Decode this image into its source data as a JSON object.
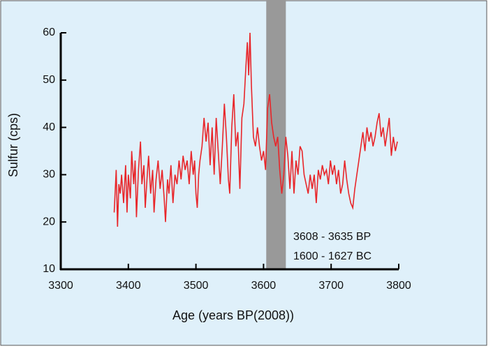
{
  "chart_data": {
    "type": "line",
    "xlabel": "Age (years BP(2008))",
    "ylabel": "Sulfur (cps)",
    "annotations": [
      "3608 - 3635 BP",
      "1600 - 1627 BC"
    ],
    "band": [
      3604,
      3633
    ],
    "band_color": "#999999",
    "xlim": [
      3300,
      3800
    ],
    "xticks": [
      3300,
      3400,
      3500,
      3600,
      3700,
      3800
    ],
    "ylim": [
      10,
      60
    ],
    "yticks": [
      10,
      20,
      30,
      40,
      50,
      60
    ],
    "series": [
      {
        "color": "#e8262a",
        "x": [
          3379,
          3382,
          3384,
          3386,
          3388,
          3390,
          3393,
          3396,
          3398,
          3400,
          3403,
          3405,
          3408,
          3410,
          3412,
          3415,
          3418,
          3420,
          3423,
          3425,
          3428,
          3430,
          3433,
          3436,
          3438,
          3441,
          3444,
          3447,
          3450,
          3453,
          3455,
          3458,
          3460,
          3463,
          3466,
          3469,
          3472,
          3475,
          3478,
          3481,
          3484,
          3487,
          3490,
          3493,
          3496,
          3498,
          3500,
          3502,
          3504,
          3506,
          3509,
          3512,
          3515,
          3518,
          3521,
          3524,
          3527,
          3530,
          3533,
          3536,
          3539,
          3542,
          3545,
          3548,
          3550,
          3553,
          3556,
          3559,
          3562,
          3565,
          3568,
          3571,
          3574,
          3576,
          3578,
          3580,
          3582,
          3585,
          3588,
          3591,
          3594,
          3597,
          3600,
          3603,
          3606,
          3609,
          3612,
          3615,
          3618,
          3621,
          3624,
          3627,
          3630,
          3633,
          3636,
          3639,
          3642,
          3645,
          3648,
          3651,
          3654,
          3657,
          3660,
          3663,
          3666,
          3669,
          3672,
          3675,
          3678,
          3681,
          3684,
          3687,
          3690,
          3693,
          3696,
          3699,
          3702,
          3705,
          3708,
          3711,
          3714,
          3717,
          3720,
          3723,
          3726,
          3729,
          3732,
          3735,
          3738,
          3741,
          3744,
          3747,
          3750,
          3753,
          3756,
          3759,
          3762,
          3765,
          3768,
          3771,
          3774,
          3777,
          3780,
          3783,
          3786,
          3789,
          3792,
          3795,
          3798
        ],
        "values": [
          22,
          31,
          19,
          28,
          26,
          30,
          24,
          32,
          22,
          30,
          25,
          35,
          28,
          33,
          21,
          31,
          37,
          28,
          32,
          23,
          30,
          34,
          26,
          31,
          22,
          29,
          33,
          27,
          31,
          25,
          20,
          29,
          26,
          32,
          24,
          30,
          28,
          33,
          29,
          34,
          31,
          33,
          28,
          35,
          30,
          33,
          26,
          23,
          30,
          33,
          36,
          42,
          37,
          41,
          32,
          40,
          30,
          42,
          35,
          28,
          36,
          45,
          38,
          29,
          26,
          40,
          47,
          36,
          39,
          27,
          42,
          45,
          53,
          58,
          51,
          60,
          49,
          38,
          36,
          40,
          36,
          33,
          35,
          31,
          44,
          47,
          41,
          38,
          36,
          38,
          31,
          26,
          30,
          38,
          34,
          27,
          35,
          26,
          33,
          30,
          36,
          35,
          30,
          28,
          26,
          30,
          27,
          30,
          24,
          31,
          29,
          32,
          30,
          31,
          28,
          33,
          30,
          32,
          28,
          31,
          26,
          28,
          33,
          29,
          26,
          24,
          23,
          27,
          30,
          33,
          36,
          39,
          35,
          40,
          37,
          39,
          36,
          38,
          41,
          43,
          38,
          40,
          36,
          39,
          42,
          34,
          38,
          35,
          37
        ]
      }
    ]
  }
}
